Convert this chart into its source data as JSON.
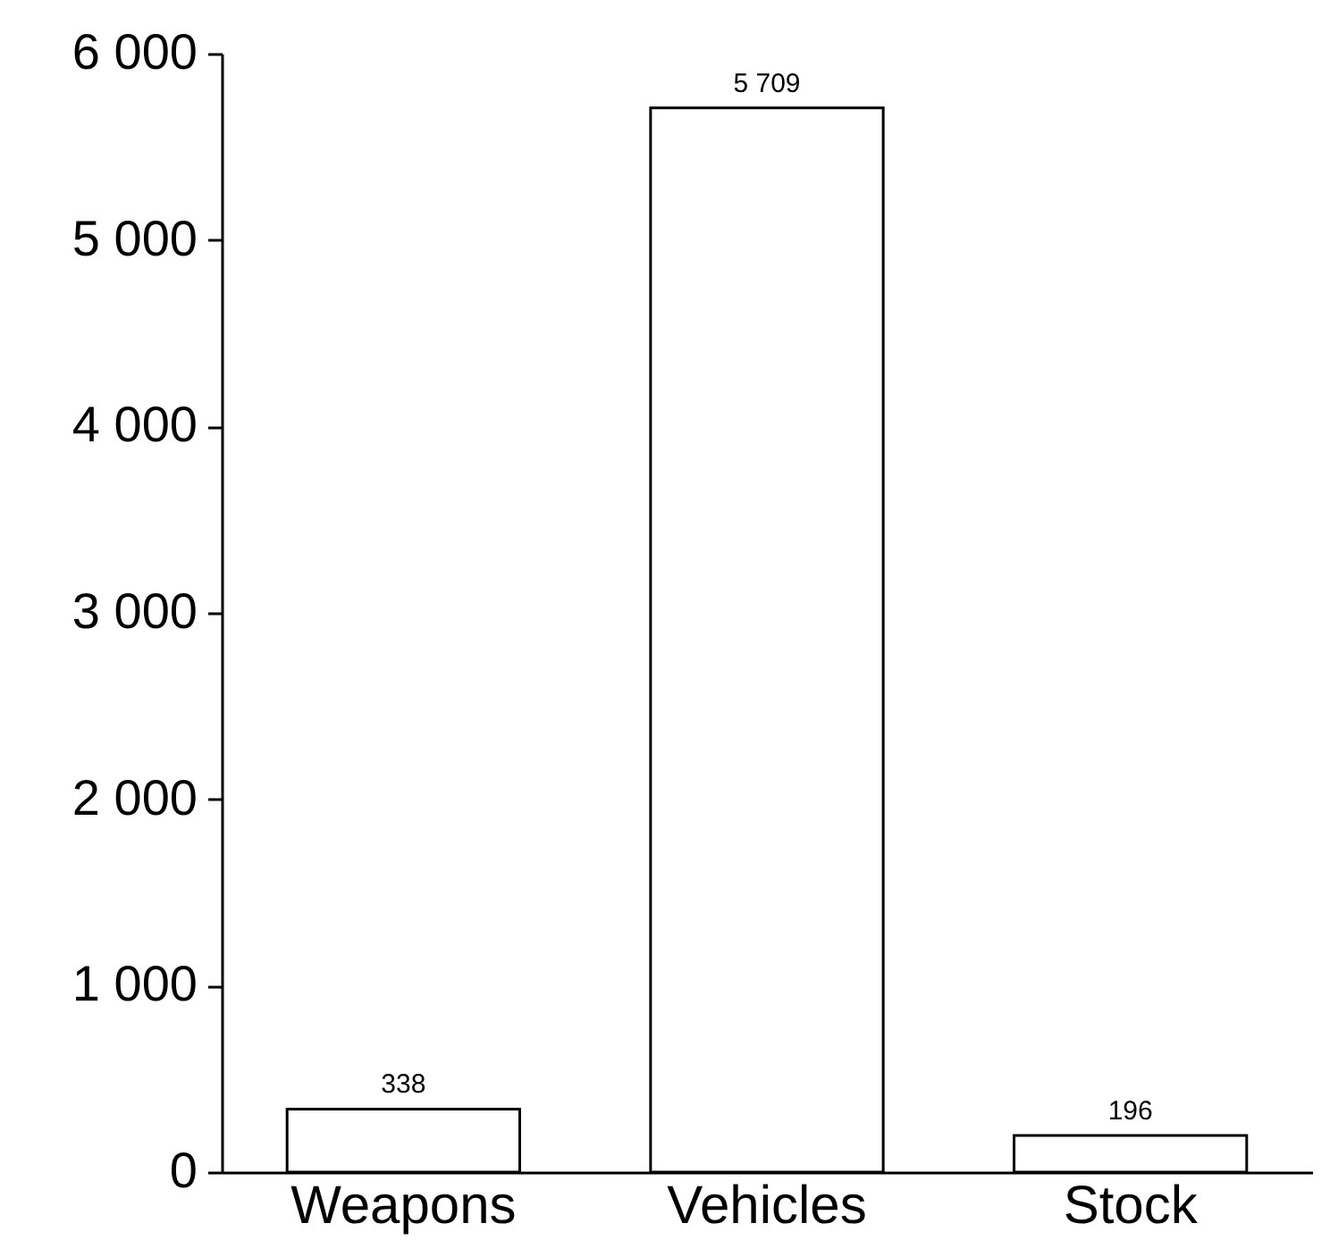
{
  "chart_data": {
    "type": "bar",
    "categories": [
      "Weapons",
      "Vehicles",
      "Stock"
    ],
    "values": [
      338,
      5709,
      196
    ],
    "color": "#ffffff",
    "value_labels": [
      "338",
      "5 709",
      "196"
    ],
    "ylim": [
      0,
      6000
    ],
    "yticks": [
      {
        "value": 0,
        "label": "0"
      },
      {
        "value": 1000,
        "label": "1 000"
      },
      {
        "value": 2000,
        "label": "2 000"
      },
      {
        "value": 3000,
        "label": "3 000"
      },
      {
        "value": 4000,
        "label": "4 000"
      },
      {
        "value": 5000,
        "label": "5 000"
      },
      {
        "value": 6000,
        "label": "6 000"
      }
    ]
  }
}
